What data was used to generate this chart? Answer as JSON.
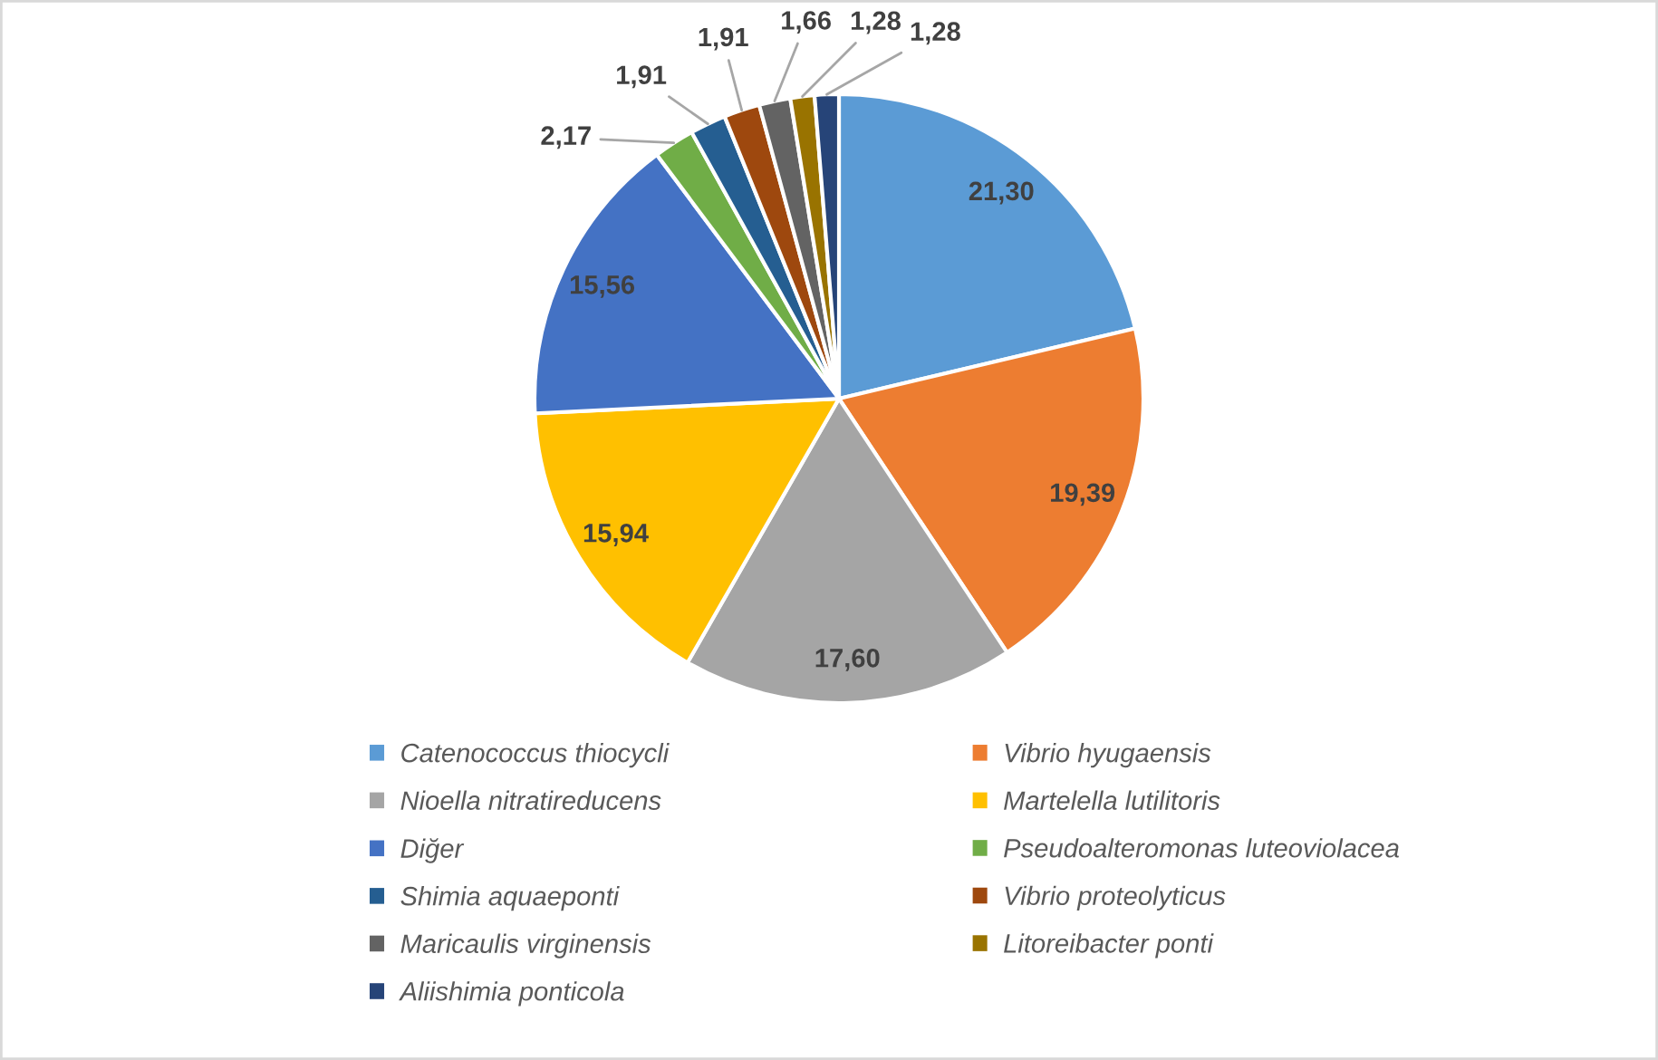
{
  "chart_data": {
    "type": "pie",
    "categories": [
      "Catenococcus thiocycli",
      "Vibrio hyugaensis",
      "Nioella nitratireducens",
      "Martelella lutilitoris",
      "Diğer",
      "Pseudoalteromonas luteoviolacea",
      "Shimia aquaeponti",
      "Vibrio proteolyticus",
      "Maricaulis virginensis",
      "Litoreibacter ponti",
      "Aliishimia ponticola"
    ],
    "values": [
      21.3,
      19.39,
      17.6,
      15.94,
      15.56,
      2.17,
      1.91,
      1.91,
      1.66,
      1.28,
      1.28
    ],
    "colors": [
      "#5b9bd5",
      "#ed7d31",
      "#a5a5a5",
      "#ffc000",
      "#4472c4",
      "#70ad47",
      "#255e91",
      "#9e480e",
      "#636363",
      "#997300",
      "#264478"
    ],
    "value_labels": [
      "21,30",
      "19,39",
      "17,60",
      "15,94",
      "15,56",
      "2,17",
      "1,91",
      "1,91",
      "1,66",
      "1,28",
      "1,28"
    ],
    "legend": "bottom"
  }
}
